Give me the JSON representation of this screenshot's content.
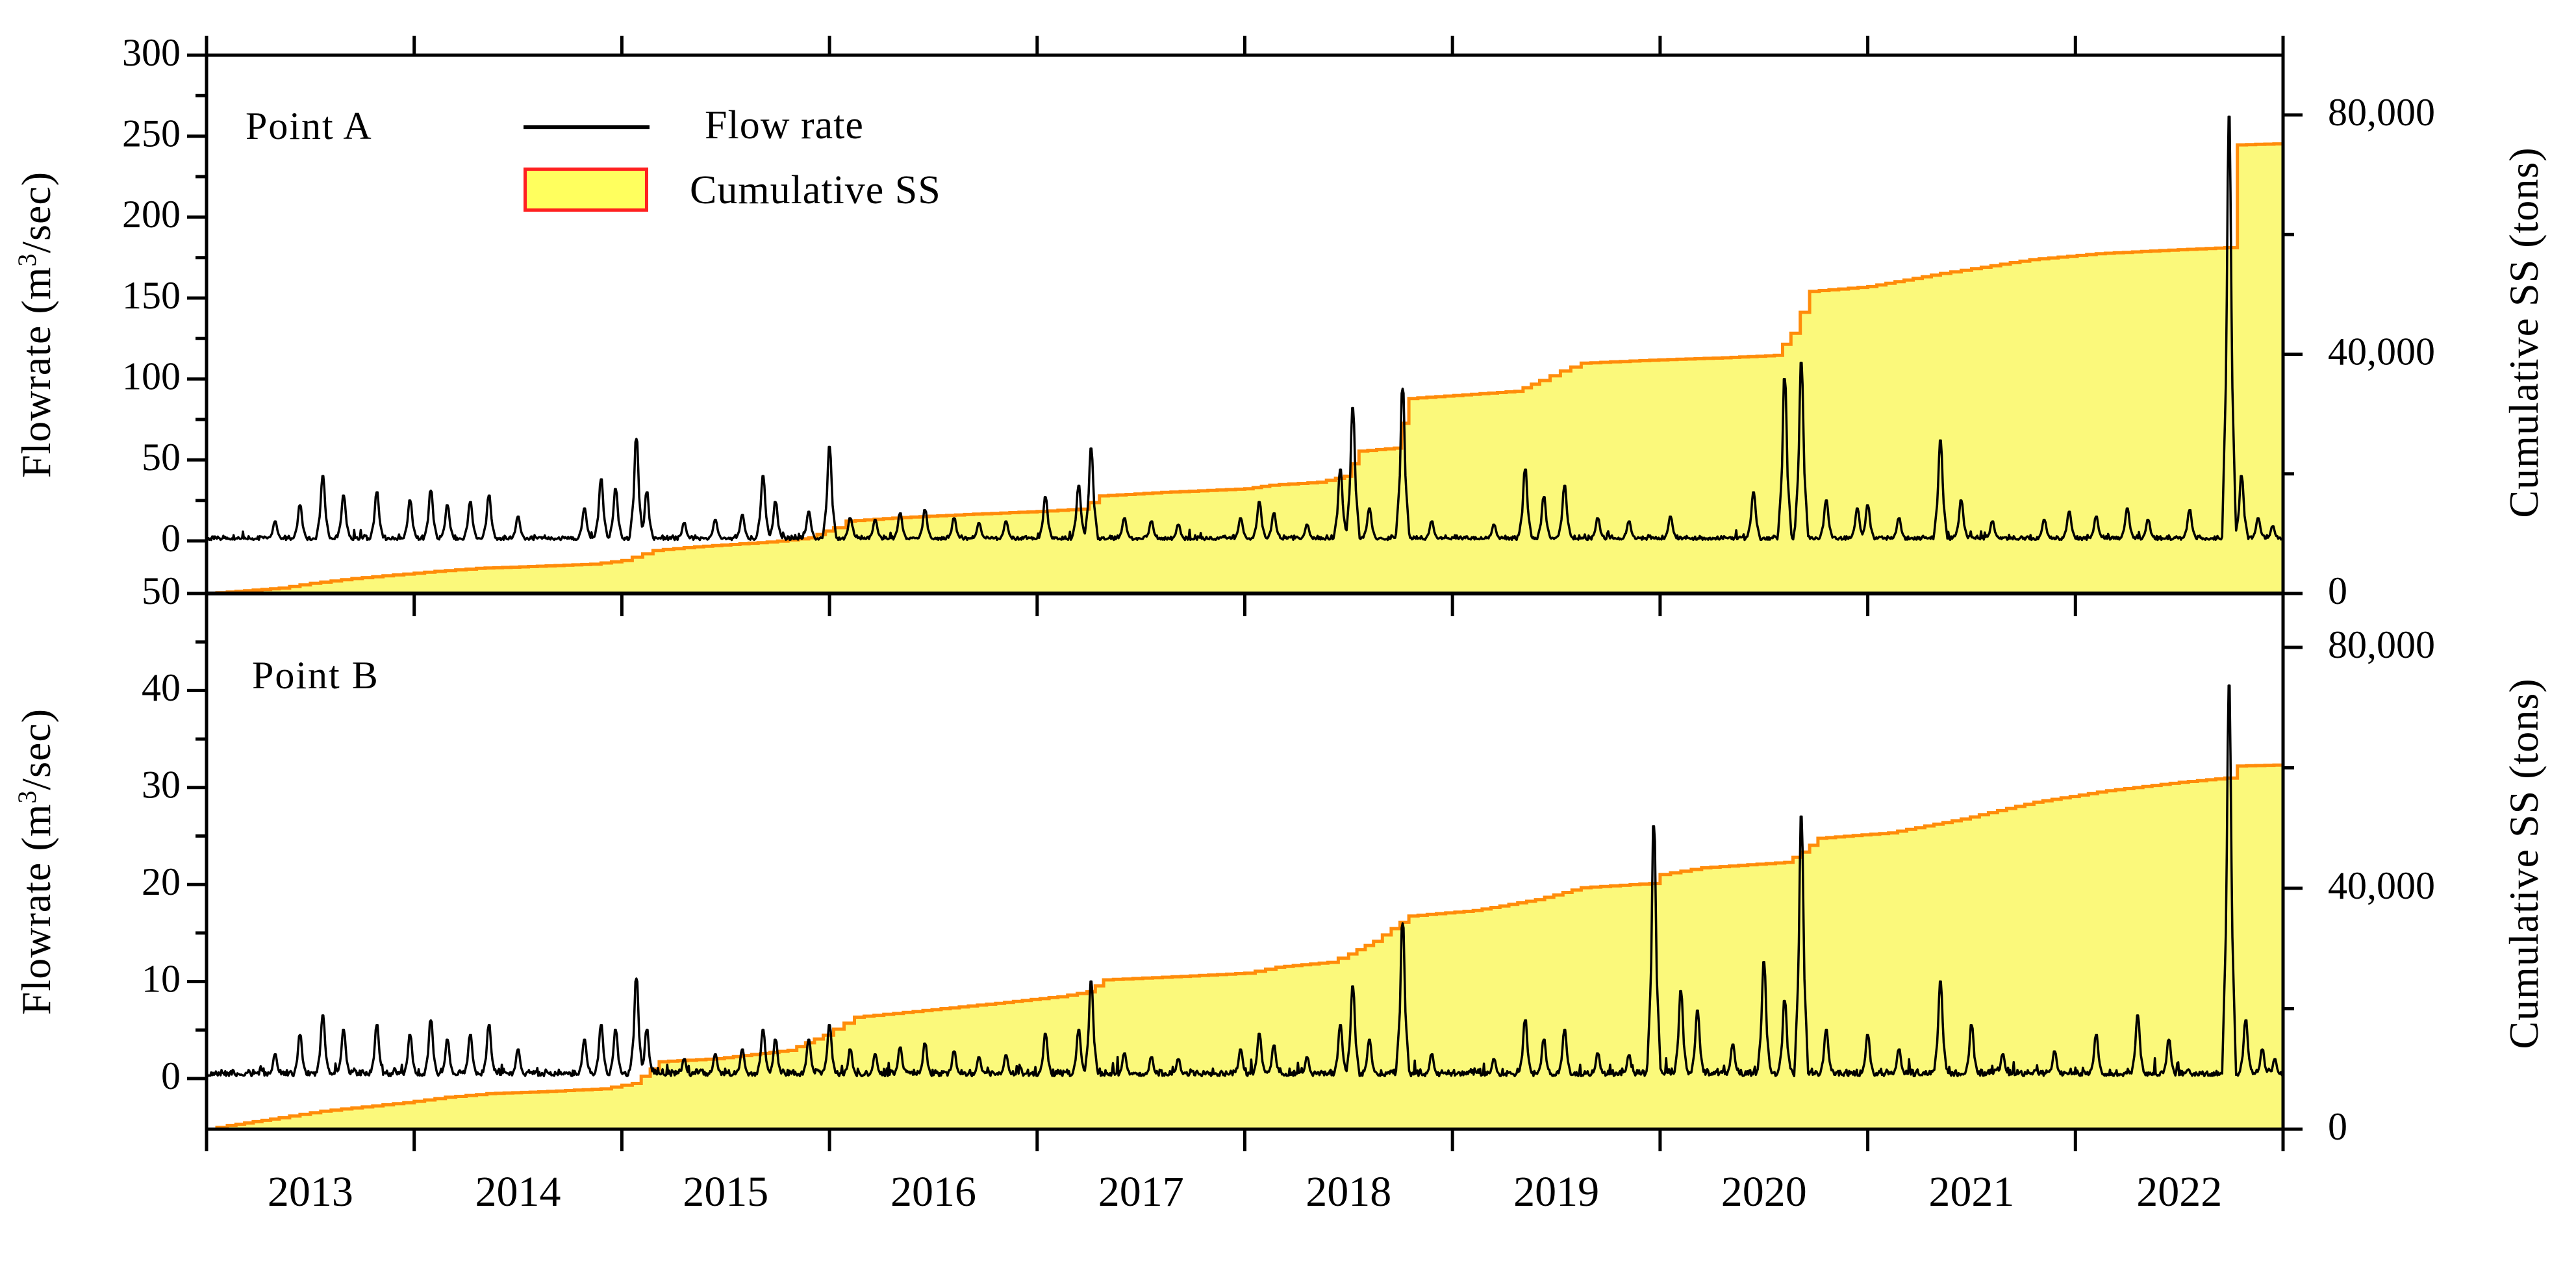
{
  "figure": {
    "panel_a_label": "Point A",
    "panel_b_label": "Point B",
    "legend": {
      "flow_label": "Flow rate",
      "cum_label": "Cumulative SS"
    },
    "left_axis_title": {
      "prefix": "Flowrate (m",
      "sup": "3",
      "suffix": "/sec)"
    },
    "right_axis_title": "Cumulative SS (tons)",
    "colors": {
      "area_fill": "#FBF97B",
      "area_line": "#FF8C0A",
      "flow_line": "#000000",
      "legend_swatch_fill": "#FFFF5E",
      "legend_swatch_border": "#FF2020",
      "axis": "#000000"
    }
  },
  "chart_data": {
    "type": "area",
    "description": "Two stacked panels; daily flow rate (black line, left axis) and cumulative suspended sediment (yellow area with orange outline, right axis) from 2013 to 2022.",
    "x_axis": {
      "range": [
        2013,
        2023
      ],
      "tick_years": [
        2013,
        2014,
        2015,
        2016,
        2017,
        2018,
        2019,
        2020,
        2021,
        2022,
        2023
      ],
      "labels": [
        "2013",
        "2014",
        "2015",
        "2016",
        "2017",
        "2018",
        "2019",
        "2020",
        "2021",
        "2022"
      ]
    },
    "panel_a": {
      "label": "Point A",
      "flow_axis": {
        "unit": "m3/sec",
        "range": [
          0,
          300
        ],
        "majors": [
          0,
          50,
          100,
          150,
          200,
          250,
          300
        ],
        "minors": [
          25,
          75,
          125,
          175,
          225,
          275
        ]
      },
      "cum_axis": {
        "unit": "tons",
        "range": [
          0,
          80000
        ],
        "majors": [
          0,
          40000,
          80000
        ],
        "major_labels": [
          "0",
          "40,000",
          "80,000"
        ],
        "minors": [
          20000,
          60000
        ]
      },
      "flow_baseline": {
        "base": 0.6,
        "amp": 3.2,
        "seed": 42
      },
      "flow_spikes": [
        [
          2013.33,
          12
        ],
        [
          2013.45,
          22
        ],
        [
          2013.56,
          40
        ],
        [
          2013.66,
          28
        ],
        [
          2013.82,
          30
        ],
        [
          2013.98,
          25
        ],
        [
          2014.08,
          31
        ],
        [
          2014.16,
          22
        ],
        [
          2014.27,
          24
        ],
        [
          2014.36,
          28
        ],
        [
          2014.5,
          15
        ],
        [
          2014.82,
          20
        ],
        [
          2014.9,
          38
        ],
        [
          2014.97,
          32
        ],
        [
          2015.07,
          63
        ],
        [
          2015.12,
          30
        ],
        [
          2015.3,
          11
        ],
        [
          2015.45,
          13
        ],
        [
          2015.58,
          16
        ],
        [
          2015.68,
          40
        ],
        [
          2015.74,
          24
        ],
        [
          2015.9,
          18
        ],
        [
          2016.0,
          58
        ],
        [
          2016.1,
          14
        ],
        [
          2016.22,
          13
        ],
        [
          2016.34,
          17
        ],
        [
          2016.46,
          19
        ],
        [
          2016.6,
          14
        ],
        [
          2016.72,
          11
        ],
        [
          2016.85,
          12
        ],
        [
          2017.04,
          27
        ],
        [
          2017.2,
          34
        ],
        [
          2017.26,
          57
        ],
        [
          2017.42,
          14
        ],
        [
          2017.55,
          12
        ],
        [
          2017.68,
          10
        ],
        [
          2017.98,
          14
        ],
        [
          2018.07,
          24
        ],
        [
          2018.14,
          17
        ],
        [
          2018.3,
          10
        ],
        [
          2018.46,
          44
        ],
        [
          2018.52,
          82
        ],
        [
          2018.6,
          20
        ],
        [
          2018.76,
          94
        ],
        [
          2018.9,
          12
        ],
        [
          2019.2,
          10
        ],
        [
          2019.35,
          44
        ],
        [
          2019.44,
          27
        ],
        [
          2019.54,
          34
        ],
        [
          2019.7,
          14
        ],
        [
          2019.85,
          12
        ],
        [
          2020.05,
          15
        ],
        [
          2020.45,
          30
        ],
        [
          2020.6,
          100
        ],
        [
          2020.68,
          110
        ],
        [
          2020.8,
          25
        ],
        [
          2020.95,
          20
        ],
        [
          2021.0,
          22
        ],
        [
          2021.15,
          14
        ],
        [
          2021.35,
          62
        ],
        [
          2021.45,
          25
        ],
        [
          2021.6,
          12
        ],
        [
          2021.85,
          13
        ],
        [
          2021.97,
          18
        ],
        [
          2022.1,
          15
        ],
        [
          2022.25,
          20
        ],
        [
          2022.35,
          13
        ],
        [
          2022.55,
          19
        ],
        [
          2022.74,
          262
        ],
        [
          2022.8,
          40
        ],
        [
          2022.88,
          14
        ],
        [
          2022.95,
          9
        ]
      ],
      "cumulative_ss": [
        [
          2013.0,
          0
        ],
        [
          2013.1,
          250
        ],
        [
          2013.35,
          900
        ],
        [
          2013.5,
          1700
        ],
        [
          2013.7,
          2500
        ],
        [
          2013.9,
          3100
        ],
        [
          2014.1,
          3700
        ],
        [
          2014.3,
          4200
        ],
        [
          2014.55,
          4500
        ],
        [
          2014.85,
          4900
        ],
        [
          2015.0,
          5500
        ],
        [
          2015.15,
          7200
        ],
        [
          2015.35,
          7800
        ],
        [
          2015.7,
          8600
        ],
        [
          2015.9,
          9300
        ],
        [
          2016.02,
          11000
        ],
        [
          2016.08,
          12100
        ],
        [
          2016.35,
          12700
        ],
        [
          2016.65,
          13200
        ],
        [
          2017.0,
          13700
        ],
        [
          2017.2,
          14100
        ],
        [
          2017.3,
          16300
        ],
        [
          2017.6,
          16900
        ],
        [
          2018.0,
          17500
        ],
        [
          2018.12,
          18100
        ],
        [
          2018.35,
          18600
        ],
        [
          2018.48,
          19600
        ],
        [
          2018.55,
          23800
        ],
        [
          2018.72,
          24300
        ],
        [
          2018.79,
          32600
        ],
        [
          2019.05,
          33200
        ],
        [
          2019.3,
          33800
        ],
        [
          2019.42,
          35600
        ],
        [
          2019.52,
          37200
        ],
        [
          2019.62,
          38500
        ],
        [
          2019.95,
          39000
        ],
        [
          2020.3,
          39400
        ],
        [
          2020.55,
          39800
        ],
        [
          2020.63,
          43500
        ],
        [
          2020.72,
          50500
        ],
        [
          2021.0,
          51300
        ],
        [
          2021.35,
          53500
        ],
        [
          2021.5,
          54300
        ],
        [
          2021.78,
          55800
        ],
        [
          2022.1,
          56800
        ],
        [
          2022.45,
          57400
        ],
        [
          2022.72,
          57800
        ],
        [
          2022.78,
          75000
        ],
        [
          2023.0,
          75200
        ]
      ]
    },
    "panel_b": {
      "label": "Point B",
      "flow_axis": {
        "unit": "m3/sec",
        "range": [
          0,
          50
        ],
        "majors": [
          0,
          10,
          20,
          30,
          40,
          50
        ],
        "minors": [
          5,
          15,
          25,
          35,
          45
        ]
      },
      "cum_axis": {
        "unit": "tons",
        "range": [
          0,
          80000
        ],
        "majors": [
          0,
          40000,
          80000
        ],
        "major_labels": [
          "0",
          "40,000",
          "80,000"
        ],
        "minors": [
          20000,
          60000
        ]
      },
      "flow_baseline": {
        "base": 0.25,
        "amp": 0.9,
        "seed": 1337
      },
      "flow_spikes": [
        [
          2013.33,
          2.5
        ],
        [
          2013.45,
          4.5
        ],
        [
          2013.56,
          6.5
        ],
        [
          2013.66,
          5
        ],
        [
          2013.82,
          5.5
        ],
        [
          2013.98,
          4.5
        ],
        [
          2014.08,
          6
        ],
        [
          2014.16,
          4
        ],
        [
          2014.27,
          4.5
        ],
        [
          2014.36,
          5.5
        ],
        [
          2014.5,
          3
        ],
        [
          2014.82,
          4
        ],
        [
          2014.9,
          5.5
        ],
        [
          2014.97,
          5
        ],
        [
          2015.07,
          10.3
        ],
        [
          2015.12,
          5
        ],
        [
          2015.3,
          2
        ],
        [
          2015.45,
          2.5
        ],
        [
          2015.58,
          3
        ],
        [
          2015.68,
          5
        ],
        [
          2015.74,
          4
        ],
        [
          2015.9,
          4
        ],
        [
          2016.0,
          5.5
        ],
        [
          2016.1,
          3
        ],
        [
          2016.22,
          2.5
        ],
        [
          2016.34,
          3.2
        ],
        [
          2016.46,
          3.6
        ],
        [
          2016.6,
          2.8
        ],
        [
          2016.72,
          2.2
        ],
        [
          2016.85,
          2.4
        ],
        [
          2017.04,
          4.6
        ],
        [
          2017.2,
          5
        ],
        [
          2017.26,
          10
        ],
        [
          2017.42,
          2.6
        ],
        [
          2017.55,
          2.2
        ],
        [
          2017.68,
          2
        ],
        [
          2017.98,
          3
        ],
        [
          2018.07,
          4.6
        ],
        [
          2018.14,
          3.4
        ],
        [
          2018.3,
          2.2
        ],
        [
          2018.46,
          5.5
        ],
        [
          2018.52,
          9.5
        ],
        [
          2018.6,
          4
        ],
        [
          2018.76,
          16
        ],
        [
          2018.9,
          2.5
        ],
        [
          2019.2,
          2
        ],
        [
          2019.35,
          6
        ],
        [
          2019.44,
          4
        ],
        [
          2019.54,
          5
        ],
        [
          2019.7,
          2.6
        ],
        [
          2019.85,
          2.4
        ],
        [
          2019.97,
          26
        ],
        [
          2020.1,
          9
        ],
        [
          2020.18,
          7
        ],
        [
          2020.35,
          3.5
        ],
        [
          2020.5,
          12
        ],
        [
          2020.6,
          8
        ],
        [
          2020.68,
          27
        ],
        [
          2020.8,
          5
        ],
        [
          2021.0,
          4.5
        ],
        [
          2021.15,
          3
        ],
        [
          2021.35,
          10
        ],
        [
          2021.5,
          5.5
        ],
        [
          2021.65,
          2.5
        ],
        [
          2021.9,
          2.8
        ],
        [
          2022.1,
          4.5
        ],
        [
          2022.3,
          6.5
        ],
        [
          2022.45,
          4
        ],
        [
          2022.74,
          40.5
        ],
        [
          2022.82,
          6
        ],
        [
          2022.9,
          3
        ],
        [
          2022.96,
          2
        ]
      ],
      "cumulative_ss": [
        [
          2013.0,
          0
        ],
        [
          2013.1,
          600
        ],
        [
          2013.35,
          1900
        ],
        [
          2013.55,
          3000
        ],
        [
          2013.75,
          3700
        ],
        [
          2013.95,
          4400
        ],
        [
          2014.15,
          5300
        ],
        [
          2014.35,
          5900
        ],
        [
          2014.6,
          6200
        ],
        [
          2014.9,
          6700
        ],
        [
          2015.05,
          7600
        ],
        [
          2015.18,
          11200
        ],
        [
          2015.45,
          11700
        ],
        [
          2015.8,
          13100
        ],
        [
          2015.97,
          15600
        ],
        [
          2016.12,
          18600
        ],
        [
          2016.45,
          19700
        ],
        [
          2016.8,
          20900
        ],
        [
          2017.1,
          22000
        ],
        [
          2017.24,
          22800
        ],
        [
          2017.32,
          24800
        ],
        [
          2017.65,
          25300
        ],
        [
          2018.0,
          25900
        ],
        [
          2018.15,
          26900
        ],
        [
          2018.4,
          27700
        ],
        [
          2018.5,
          29100
        ],
        [
          2018.62,
          31200
        ],
        [
          2018.79,
          35400
        ],
        [
          2019.1,
          36300
        ],
        [
          2019.4,
          38100
        ],
        [
          2019.62,
          40100
        ],
        [
          2019.95,
          40800
        ],
        [
          2020.0,
          42300
        ],
        [
          2020.2,
          43400
        ],
        [
          2020.6,
          44300
        ],
        [
          2020.68,
          46000
        ],
        [
          2020.76,
          48300
        ],
        [
          2021.1,
          49200
        ],
        [
          2021.45,
          51500
        ],
        [
          2021.8,
          54300
        ],
        [
          2022.15,
          56200
        ],
        [
          2022.5,
          57600
        ],
        [
          2022.72,
          58300
        ],
        [
          2022.78,
          60300
        ],
        [
          2023.0,
          60500
        ]
      ]
    }
  }
}
